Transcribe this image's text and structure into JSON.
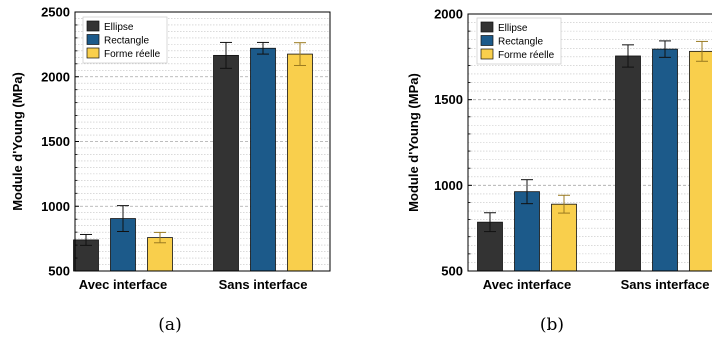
{
  "colors": {
    "Ellipse": "#333333",
    "Rectangle": "#1c5a8a",
    "Forme réelle": "#f9cf4c"
  },
  "chart_data": [
    {
      "type": "bar",
      "caption": "(a)",
      "ylabel": "Module d'Young (MPa)",
      "categories": [
        "Avec interface",
        "Sans interface"
      ],
      "ylim": [
        500,
        2500
      ],
      "yticks": [
        500,
        1000,
        1500,
        2000,
        2500
      ],
      "minor_grid_step": 50,
      "legend": {
        "position": "top-left",
        "entries": [
          "Ellipse",
          "Rectangle",
          "Forme réelle"
        ]
      },
      "series": [
        {
          "name": "Ellipse",
          "values": [
            740,
            2165
          ],
          "errors": [
            42,
            100
          ]
        },
        {
          "name": "Rectangle",
          "values": [
            905,
            2220
          ],
          "errors": [
            100,
            45
          ]
        },
        {
          "name": "Forme réelle",
          "values": [
            758,
            2175
          ],
          "errors": [
            40,
            88
          ]
        }
      ]
    },
    {
      "type": "bar",
      "caption": "(b)",
      "ylabel": "Module d'Young (MPa)",
      "categories": [
        "Avec interface",
        "Sans interface"
      ],
      "ylim": [
        500,
        2000
      ],
      "yticks": [
        500,
        1000,
        1500,
        2000
      ],
      "minor_grid_step": 50,
      "legend": {
        "position": "top-left",
        "entries": [
          "Ellipse",
          "Rectangle",
          "Forme réelle"
        ]
      },
      "series": [
        {
          "name": "Ellipse",
          "values": [
            785,
            1755
          ],
          "errors": [
            55,
            65
          ]
        },
        {
          "name": "Rectangle",
          "values": [
            963,
            1795
          ],
          "errors": [
            70,
            48
          ]
        },
        {
          "name": "Forme réelle",
          "values": [
            890,
            1782
          ],
          "errors": [
            52,
            58
          ]
        }
      ]
    }
  ]
}
